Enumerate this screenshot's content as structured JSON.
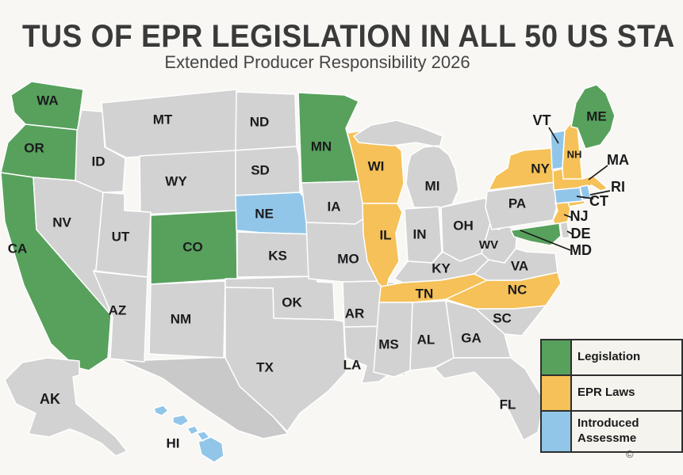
{
  "title": "TUS OF EPR LEGISLATION IN ALL 50 US STA",
  "subtitle": "Extended Producer Responsibility 2026",
  "copyright_mark": "©",
  "colors": {
    "legislation": "#57a15c",
    "epr_laws": "#f5c158",
    "introduced": "#92c6e9",
    "none": "#d2d2d3",
    "foreign_land": "#c9c9c9",
    "background": "#f8f7f3",
    "state_border": "#ffffff",
    "label_text": "#1b1b1d",
    "legend_border": "#2e2e2e",
    "legend_bg": "#f4f3ee"
  },
  "legend": {
    "items": [
      {
        "line1": "Legislation",
        "line2": "",
        "color": "#57a15c"
      },
      {
        "line1": "EPR Laws",
        "line2": "",
        "color": "#f5c158"
      },
      {
        "line1": "Introduced",
        "line2": "Assessme",
        "color": "#92c6e9"
      }
    ]
  },
  "map": {
    "states": [
      {
        "abbr": "WA",
        "status": "legislation"
      },
      {
        "abbr": "OR",
        "status": "legislation"
      },
      {
        "abbr": "CA",
        "status": "legislation"
      },
      {
        "abbr": "NV",
        "status": "none"
      },
      {
        "abbr": "ID",
        "status": "none"
      },
      {
        "abbr": "MT",
        "status": "none"
      },
      {
        "abbr": "WY",
        "status": "none"
      },
      {
        "abbr": "UT",
        "status": "none"
      },
      {
        "abbr": "CO",
        "status": "legislation"
      },
      {
        "abbr": "AZ",
        "status": "none"
      },
      {
        "abbr": "NM",
        "status": "none"
      },
      {
        "abbr": "ND",
        "status": "none"
      },
      {
        "abbr": "SD",
        "status": "none"
      },
      {
        "abbr": "NE",
        "status": "introduced"
      },
      {
        "abbr": "KS",
        "status": "none"
      },
      {
        "abbr": "OK",
        "status": "none"
      },
      {
        "abbr": "TX",
        "status": "none"
      },
      {
        "abbr": "MN",
        "status": "legislation"
      },
      {
        "abbr": "IA",
        "status": "none"
      },
      {
        "abbr": "MO",
        "status": "none"
      },
      {
        "abbr": "AR",
        "status": "none"
      },
      {
        "abbr": "LA",
        "status": "none"
      },
      {
        "abbr": "WI",
        "status": "epr_laws"
      },
      {
        "abbr": "IL",
        "status": "epr_laws"
      },
      {
        "abbr": "MI",
        "status": "none"
      },
      {
        "abbr": "IN",
        "status": "none"
      },
      {
        "abbr": "OH",
        "status": "none"
      },
      {
        "abbr": "KY",
        "status": "none"
      },
      {
        "abbr": "TN",
        "status": "epr_laws"
      },
      {
        "abbr": "MS",
        "status": "none"
      },
      {
        "abbr": "AL",
        "status": "none"
      },
      {
        "abbr": "GA",
        "status": "none"
      },
      {
        "abbr": "FL",
        "status": "none"
      },
      {
        "abbr": "SC",
        "status": "none"
      },
      {
        "abbr": "NC",
        "status": "epr_laws"
      },
      {
        "abbr": "VA",
        "status": "none"
      },
      {
        "abbr": "WV",
        "status": "none"
      },
      {
        "abbr": "PA",
        "status": "none"
      },
      {
        "abbr": "NY",
        "status": "epr_laws"
      },
      {
        "abbr": "NJ",
        "status": "epr_laws"
      },
      {
        "abbr": "DE",
        "status": "none"
      },
      {
        "abbr": "MD",
        "status": "legislation"
      },
      {
        "abbr": "VT",
        "status": "introduced"
      },
      {
        "abbr": "NH",
        "status": "epr_laws"
      },
      {
        "abbr": "ME",
        "status": "legislation"
      },
      {
        "abbr": "MA",
        "status": "epr_laws"
      },
      {
        "abbr": "CT",
        "status": "introduced"
      },
      {
        "abbr": "RI",
        "status": "introduced"
      },
      {
        "abbr": "AK",
        "status": "none"
      },
      {
        "abbr": "HI",
        "status": "introduced"
      }
    ]
  }
}
